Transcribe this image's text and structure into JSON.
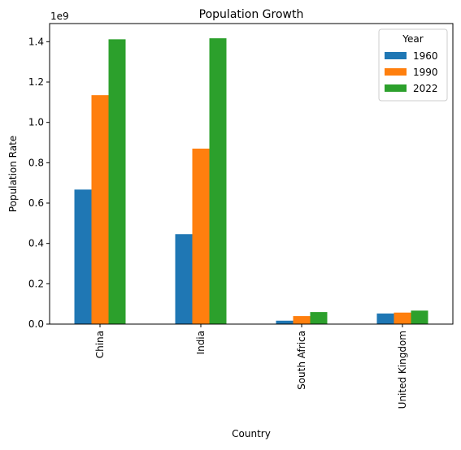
{
  "chart_data": {
    "type": "bar",
    "title": "Population Growth",
    "xlabel": "Country",
    "ylabel": "Population Rate",
    "y_offset_label": "1e9",
    "categories": [
      "China",
      "India",
      "South Africa",
      "United Kingdom"
    ],
    "series": [
      {
        "name": "1960",
        "color": "#1f77b4",
        "values": [
          667000000,
          446000000,
          17000000,
          52400000
        ]
      },
      {
        "name": "1990",
        "color": "#ff7f0e",
        "values": [
          1135000000,
          870000000,
          39900000,
          57200000
        ]
      },
      {
        "name": "2022",
        "color": "#2ca02c",
        "values": [
          1412000000,
          1417000000,
          59900000,
          66900000
        ]
      }
    ],
    "ylim": [
      0,
      1490000000
    ],
    "yticks": [
      0,
      200000000,
      400000000,
      600000000,
      800000000,
      1000000000,
      1200000000,
      1400000000
    ],
    "ytick_labels": [
      "0.0",
      "0.2",
      "0.4",
      "0.6",
      "0.8",
      "1.0",
      "1.2",
      "1.4"
    ],
    "legend": {
      "title": "Year",
      "position": "top-right"
    },
    "grid": false
  }
}
